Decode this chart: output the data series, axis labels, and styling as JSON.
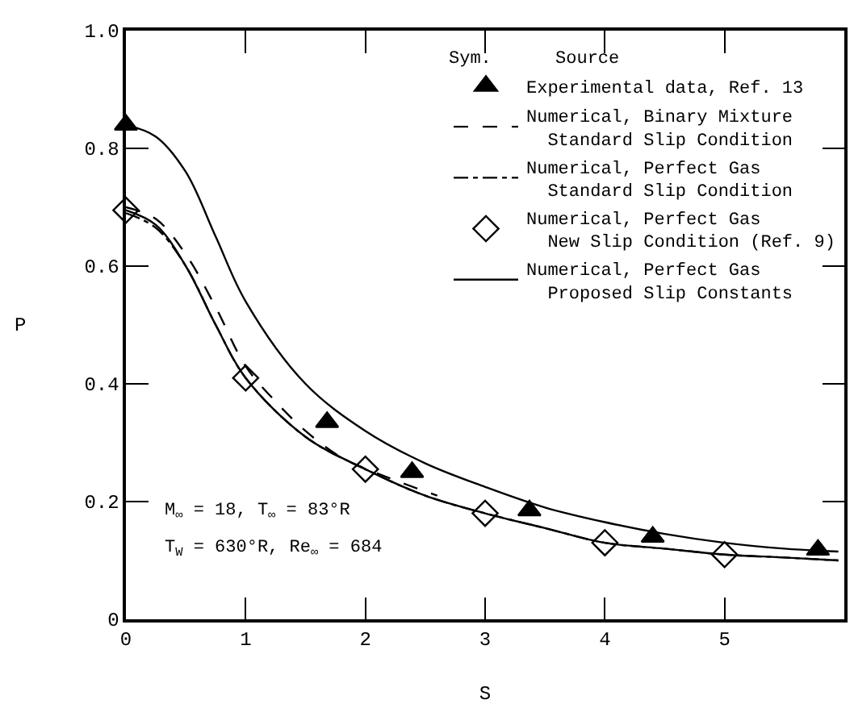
{
  "chart_data": {
    "type": "line",
    "xlabel": "S",
    "ylabel": "P",
    "legend_title": "Sym.      Source",
    "legend": "top right",
    "xlim": [
      0,
      6
    ],
    "xticks": [
      0,
      1,
      2,
      3,
      4,
      5,
      {
        "value": 6,
        "label": null
      }
    ],
    "ylim": [
      0,
      1
    ],
    "yticks": [
      0,
      0.2,
      0.4,
      0.6,
      0.8,
      {
        "value": 1,
        "label": "1.0"
      }
    ],
    "annotations": [
      "M$_{∞}$ = 18, T$_{∞}$ = 83°R",
      "T$_{W}$ = 630°R, Re$_{∞}$ = 684"
    ],
    "series": [
      {
        "name": "Experimental data, Ref. 13",
        "type": "scatter",
        "marker": "triangle",
        "color": "#000000",
        "x": [
          0,
          1.68,
          2.39,
          3.37,
          4.4,
          5.78
        ],
        "values": [
          0.84,
          0.335,
          0.25,
          0.185,
          0.14,
          0.118
        ]
      },
      {
        "name": "Numerical, Binary Mixture\n  Standard Slip Condition",
        "line_style": "dashed",
        "color": "#000000",
        "x": [
          0,
          0.25,
          0.5,
          0.75,
          1,
          1.25,
          1.5,
          1.8,
          2.2,
          2.6
        ],
        "values": [
          0.7,
          0.68,
          0.62,
          0.53,
          0.43,
          0.37,
          0.32,
          0.275,
          0.24,
          0.21
        ]
      },
      {
        "name": "Numerical, Perfect Gas\n  Standard Slip Condition",
        "line_style": "dashdot",
        "color": "#000000",
        "x": [
          0,
          0.25,
          0.5,
          0.75,
          1,
          1.5,
          2,
          2.5,
          3,
          3.5,
          4,
          4.5,
          5,
          5.5,
          5.95
        ],
        "values": [
          0.69,
          0.665,
          0.6,
          0.5,
          0.41,
          0.31,
          0.255,
          0.21,
          0.18,
          0.155,
          0.13,
          0.12,
          0.11,
          0.105,
          0.1
        ]
      },
      {
        "name": "Numerical, Perfect Gas\n  New Slip Condition (Ref. 9)",
        "type": "scatter",
        "marker": "diamond-open",
        "line_style": "solid",
        "color": "#000000",
        "x": [
          0,
          1,
          2,
          3,
          4,
          5
        ],
        "values": [
          0.695,
          0.41,
          0.255,
          0.18,
          0.13,
          0.11
        ]
      },
      {
        "line_style": "solid",
        "color": "#000000",
        "x": [
          0,
          0.25,
          0.5,
          0.75,
          1,
          1.5,
          2,
          2.5,
          3,
          3.5,
          4,
          4.5,
          5,
          5.5,
          5.95
        ],
        "values": [
          0.695,
          0.67,
          0.6,
          0.5,
          0.41,
          0.31,
          0.255,
          0.21,
          0.18,
          0.155,
          0.13,
          0.12,
          0.11,
          0.105,
          0.1
        ]
      },
      {
        "name": "Numerical, Perfect Gas\n  Proposed Slip Constants",
        "line_style": "solid",
        "color": "#000000",
        "x": [
          0,
          0.25,
          0.5,
          0.75,
          1,
          1.5,
          2,
          2.5,
          3,
          3.5,
          4,
          4.5,
          5,
          5.5,
          5.95
        ],
        "values": [
          0.84,
          0.82,
          0.76,
          0.65,
          0.54,
          0.4,
          0.32,
          0.265,
          0.225,
          0.19,
          0.165,
          0.145,
          0.13,
          0.12,
          0.115
        ]
      }
    ]
  }
}
